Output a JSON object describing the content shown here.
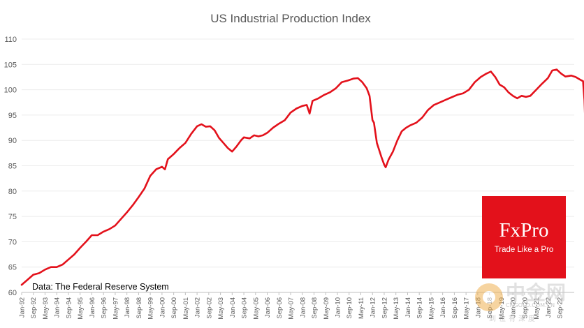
{
  "chart_data": {
    "type": "line",
    "title": "US Industrial Production Index",
    "xlabel": "",
    "ylabel": "",
    "ylim": [
      60,
      110
    ],
    "yticks": [
      60,
      65,
      70,
      75,
      80,
      85,
      90,
      95,
      100,
      105,
      110
    ],
    "x_tick_labels": [
      "Jan-92",
      "Sep-92",
      "May-93",
      "Jan-94",
      "Sep-94",
      "May-95",
      "Jan-96",
      "Sep-96",
      "May-97",
      "Jan-98",
      "Sep-98",
      "May-99",
      "Jan-00",
      "Sep-00",
      "May-01",
      "Jan-02",
      "Sep-02",
      "May-03",
      "Jan-04",
      "Sep-04",
      "May-05",
      "Jan-06",
      "Sep-06",
      "May-07",
      "Jan-08",
      "Sep-08",
      "May-09",
      "Jan-10",
      "Sep-10",
      "May-11",
      "Jan-12",
      "Sep-12",
      "May-13",
      "Jan-14",
      "Sep-14",
      "May-15",
      "Jan-16",
      "Sep-16",
      "May-17",
      "Jan-18",
      "Sep-18",
      "May-19",
      "Jan-20",
      "Sep-20",
      "May-21",
      "Jan-22",
      "Sep-22"
    ],
    "x_range_months": [
      0,
      378
    ],
    "series": [
      {
        "name": "US Industrial Production Index",
        "color": "#e3111b",
        "points": [
          [
            0,
            61.5
          ],
          [
            4,
            62.5
          ],
          [
            8,
            63.5
          ],
          [
            12,
            63.8
          ],
          [
            16,
            64.5
          ],
          [
            20,
            65
          ],
          [
            24,
            65
          ],
          [
            28,
            65.5
          ],
          [
            32,
            66.5
          ],
          [
            36,
            67.5
          ],
          [
            40,
            68.8
          ],
          [
            44,
            70
          ],
          [
            48,
            71.3
          ],
          [
            52,
            71.3
          ],
          [
            56,
            72
          ],
          [
            60,
            72.5
          ],
          [
            64,
            73.2
          ],
          [
            68,
            74.5
          ],
          [
            72,
            75.8
          ],
          [
            76,
            77.2
          ],
          [
            80,
            78.8
          ],
          [
            84,
            80.5
          ],
          [
            88,
            83
          ],
          [
            92,
            84.3
          ],
          [
            96,
            84.8
          ],
          [
            98,
            84.3
          ],
          [
            100,
            86.3
          ],
          [
            104,
            87.3
          ],
          [
            108,
            88.5
          ],
          [
            112,
            89.5
          ],
          [
            116,
            91.3
          ],
          [
            120,
            92.8
          ],
          [
            123,
            93.2
          ],
          [
            126,
            92.7
          ],
          [
            129,
            92.8
          ],
          [
            132,
            92
          ],
          [
            135,
            90.5
          ],
          [
            138,
            89.5
          ],
          [
            141,
            88.5
          ],
          [
            144,
            87.8
          ],
          [
            147,
            88.8
          ],
          [
            150,
            90
          ],
          [
            152,
            90.6
          ],
          [
            156,
            90.4
          ],
          [
            159,
            91
          ],
          [
            162,
            90.8
          ],
          [
            165,
            91
          ],
          [
            168,
            91.5
          ],
          [
            172,
            92.5
          ],
          [
            176,
            93.3
          ],
          [
            180,
            94
          ],
          [
            184,
            95.5
          ],
          [
            188,
            96.3
          ],
          [
            192,
            96.8
          ],
          [
            195,
            97
          ],
          [
            197,
            95.3
          ],
          [
            199,
            97.8
          ],
          [
            203,
            98.3
          ],
          [
            207,
            99
          ],
          [
            211,
            99.5
          ],
          [
            215,
            100.3
          ],
          [
            219,
            101.5
          ],
          [
            223,
            101.8
          ],
          [
            227,
            102.2
          ],
          [
            230,
            102.3
          ],
          [
            233,
            101.5
          ],
          [
            236,
            100.3
          ],
          [
            238,
            98.8
          ],
          [
            240,
            94
          ],
          [
            241,
            93.5
          ],
          [
            243,
            89.5
          ],
          [
            246,
            86.8
          ],
          [
            248,
            85.2
          ],
          [
            249,
            84.7
          ],
          [
            251,
            86.2
          ],
          [
            254,
            87.8
          ],
          [
            257,
            90
          ],
          [
            260,
            91.8
          ],
          [
            263,
            92.5
          ],
          [
            266,
            93
          ],
          [
            270,
            93.5
          ],
          [
            274,
            94.5
          ],
          [
            278,
            96
          ],
          [
            282,
            97
          ],
          [
            286,
            97.5
          ],
          [
            290,
            98
          ],
          [
            294,
            98.5
          ],
          [
            298,
            99
          ],
          [
            302,
            99.3
          ],
          [
            306,
            100
          ],
          [
            310,
            101.5
          ],
          [
            314,
            102.5
          ],
          [
            318,
            103.2
          ],
          [
            321,
            103.6
          ],
          [
            324,
            102.5
          ],
          [
            327,
            101
          ],
          [
            330,
            100.5
          ],
          [
            333,
            99.5
          ],
          [
            336,
            98.8
          ],
          [
            339,
            98.3
          ],
          [
            342,
            98.8
          ],
          [
            345,
            98.6
          ],
          [
            348,
            98.8
          ],
          [
            352,
            100
          ],
          [
            356,
            101.2
          ],
          [
            360,
            102.3
          ],
          [
            363,
            103.8
          ],
          [
            366,
            104
          ],
          [
            369,
            103.2
          ],
          [
            372,
            102.6
          ],
          [
            376,
            102.8
          ],
          [
            379,
            102.5
          ],
          [
            382,
            102
          ],
          [
            384,
            101.7
          ],
          [
            385,
            98
          ],
          [
            386,
            90
          ],
          [
            387,
            85.2
          ],
          [
            388,
            86.5
          ],
          [
            389,
            91
          ],
          [
            390,
            94.5
          ],
          [
            392,
            96
          ],
          [
            394,
            96.8
          ],
          [
            396,
            97.5
          ],
          [
            398,
            99
          ],
          [
            400,
            96.5
          ],
          [
            402,
            99.5
          ],
          [
            405,
            100.8
          ],
          [
            408,
            101.5
          ],
          [
            411,
            102.5
          ],
          [
            414,
            103.5
          ],
          [
            417,
            104
          ],
          [
            420,
            104.5
          ],
          [
            423,
            104.8
          ],
          [
            425,
            104.7
          ],
          [
            427,
            103.5
          ]
        ]
      }
    ],
    "source_note": "Data: The Federal Reserve System"
  },
  "logo": {
    "brand": "FxPro",
    "slogan": "Trade Like a Pro",
    "bg_color": "#e3111b"
  },
  "watermark": {
    "brand_cn": "中金网",
    "url": "CNGOLD.COM.CN",
    "tagline": "到位有深度"
  }
}
